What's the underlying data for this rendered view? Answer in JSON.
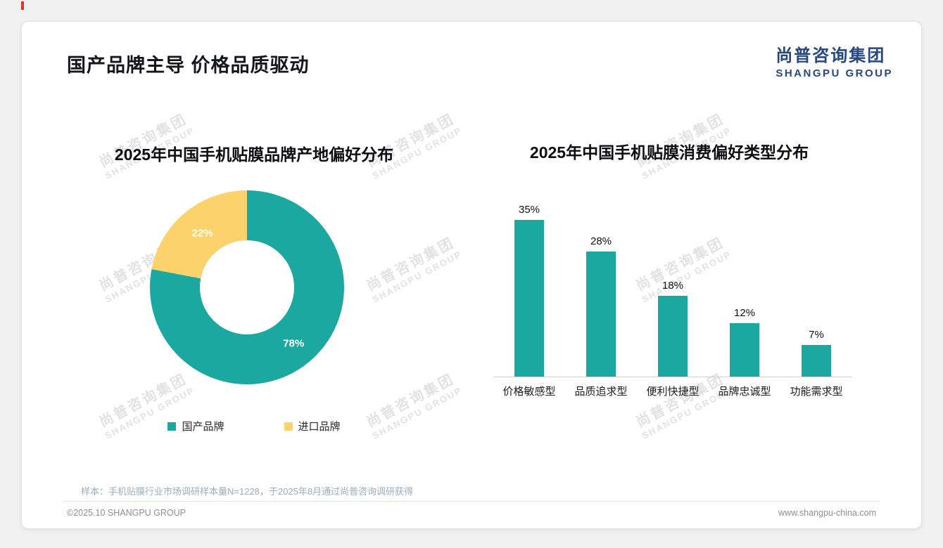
{
  "slide": {
    "title": "国产品牌主导 价格品质驱动",
    "logo": {
      "cn": "尚普咨询集团",
      "en": "SHANGPU GROUP"
    },
    "watermark": {
      "cn": "尚普咨询集团",
      "en": "SHANGPU GROUP"
    },
    "footnote": "样本：手机贴膜行业市场调研样本量N=1228，于2025年8月通过尚普咨询调研获得",
    "footer": {
      "left": "©2025.10 SHANGPU GROUP",
      "right": "www.shangpu-china.com"
    },
    "accent_mark_color": "#e5332a"
  },
  "colors": {
    "teal": "#1ba8a0",
    "yellow": "#fbd26b",
    "logo_blue": "#27477f",
    "title_dark": "#16161f"
  },
  "chart_data": [
    {
      "type": "pie",
      "donut": true,
      "title": "2025年中国手机贴膜品牌产地偏好分布",
      "labels": [
        "国产品牌",
        "进口品牌"
      ],
      "values": [
        78,
        22
      ],
      "unit": "%",
      "colors": [
        "#1ba8a0",
        "#fbd26b"
      ],
      "legend_position": "bottom",
      "slice_label_format": "percent"
    },
    {
      "type": "bar",
      "title": "2025年中国手机贴膜消费偏好类型分布",
      "categories": [
        "价格敏感型",
        "品质追求型",
        "便利快捷型",
        "品牌忠诚型",
        "功能需求型"
      ],
      "values": [
        35,
        28,
        18,
        12,
        7
      ],
      "unit": "%",
      "bar_color": "#1ba8a0",
      "ylim": [
        0,
        38
      ],
      "grid": false,
      "value_labels": "above"
    }
  ]
}
